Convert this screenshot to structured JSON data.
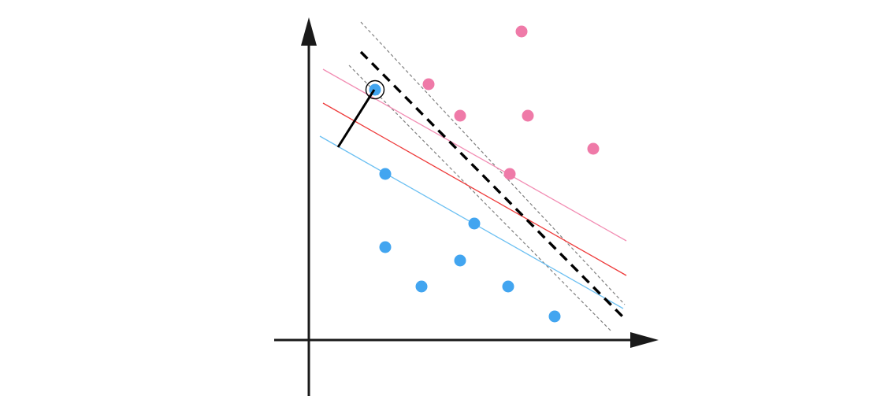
{
  "colors": {
    "background": "#ffffff",
    "axis": "#1a1a1a",
    "class_a_point": "#ef7aa8",
    "class_b_point": "#42a5f0",
    "class_a_margin_line": "#f28db3",
    "class_b_margin_line": "#6cc0f2",
    "red_line": "#ee3a3a",
    "optimal_line": "#000000",
    "dotted_margin": "#808080",
    "support_vector_ring": "#000000",
    "distance_segment": "#000000"
  },
  "diagram": {
    "x_axis_label": "",
    "y_axis_label": ""
  }
}
